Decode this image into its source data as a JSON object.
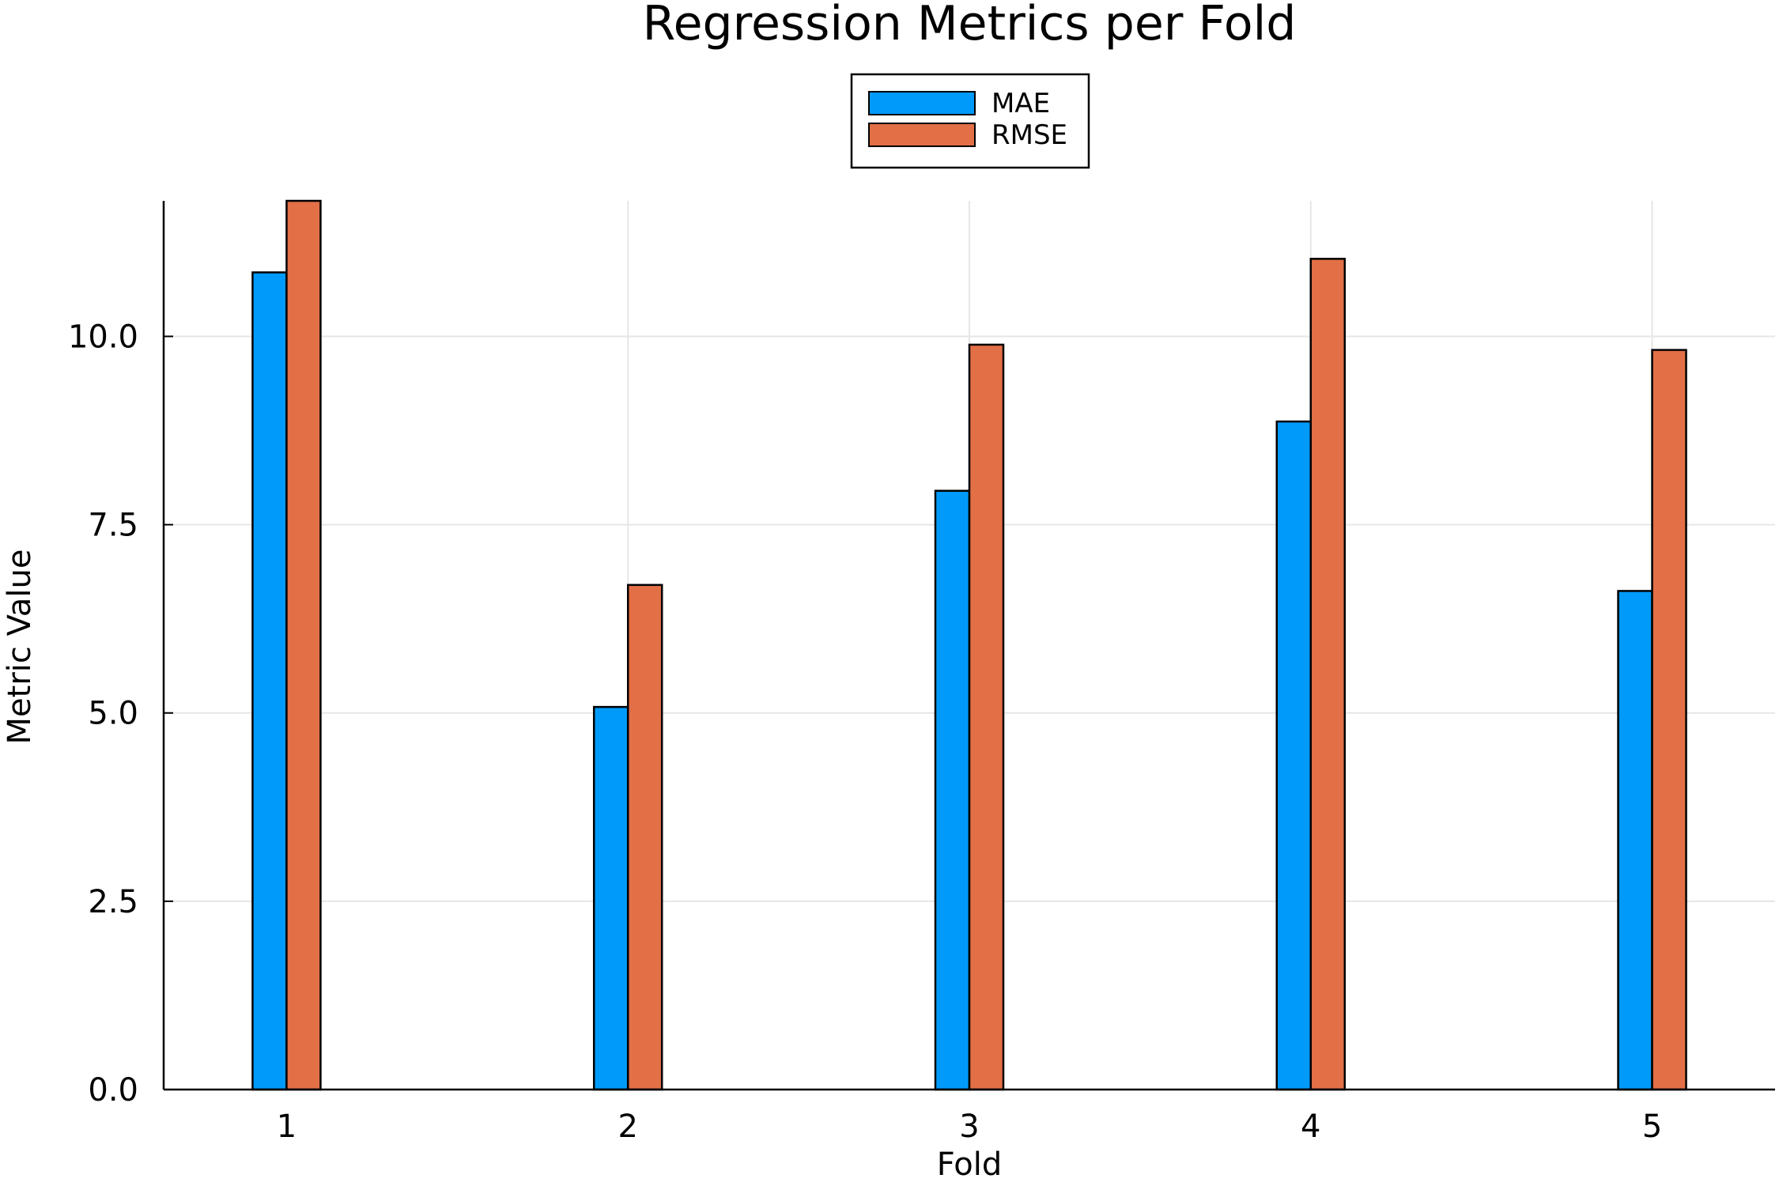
{
  "chart_data": {
    "type": "bar",
    "title": "Regression Metrics per Fold",
    "xlabel": "Fold",
    "ylabel": "Metric Value",
    "categories": [
      "1",
      "2",
      "3",
      "4",
      "5"
    ],
    "series": [
      {
        "name": "MAE",
        "color": "#009AFA",
        "values": [
          10.85,
          5.08,
          7.95,
          8.87,
          6.62
        ]
      },
      {
        "name": "RMSE",
        "color": "#E26F46",
        "values": [
          11.8,
          6.7,
          9.89,
          11.03,
          9.82
        ]
      }
    ],
    "xlim": [
      0.64,
      5.36
    ],
    "ylim": [
      0,
      11.8
    ],
    "yticks": [
      0.0,
      2.5,
      5.0,
      7.5,
      10.0
    ],
    "ytick_labels": [
      "0.0",
      "2.5",
      "5.0",
      "7.5",
      "10.0"
    ],
    "grid": true,
    "legend_position": "top-center, outside plot"
  }
}
